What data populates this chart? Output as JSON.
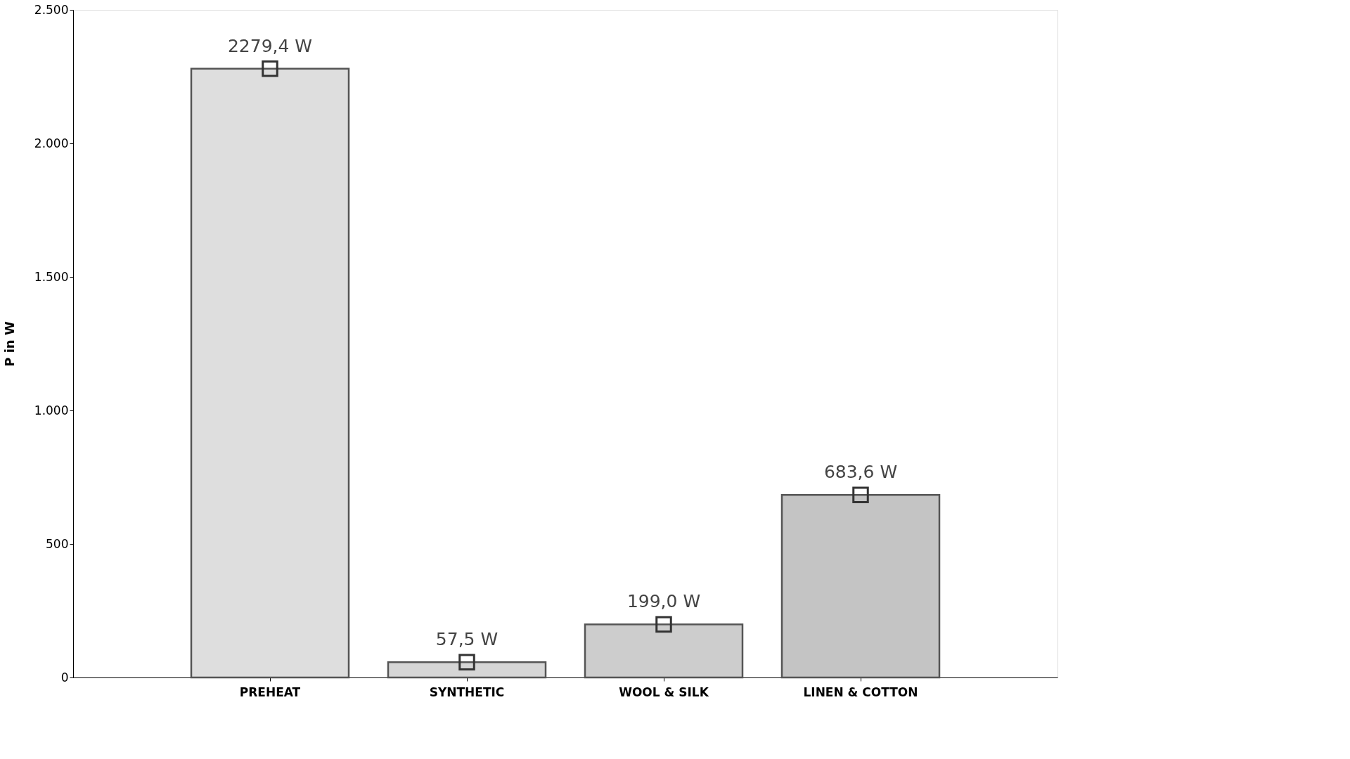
{
  "chart_data": {
    "type": "bar",
    "ylabel": "P in W",
    "categories": [
      "PREHEAT",
      "SYNTHETIC",
      "WOOL & SILK",
      "LINEN & COTTON"
    ],
    "series": [
      {
        "values": [
          2279.4,
          57.5,
          199.0,
          683.6
        ],
        "colors": [
          "#dedede",
          "#d6d6d6",
          "#cdcdcd",
          "#c4c4c4"
        ],
        "value_labels": [
          "2279,4 W",
          "57,5 W",
          "199,0 W",
          "683,6 W"
        ]
      },
      {
        "type": "scatter",
        "x": [
          "PREHEAT",
          "SYNTHETIC",
          "WOOL & SILK",
          "LINEN & COTTON"
        ],
        "values": [
          2279.4,
          57.5,
          199.0,
          683.6
        ],
        "color": "#333333",
        "marker": "square"
      }
    ],
    "ylim": [
      0,
      2500
    ],
    "yticks": [
      0,
      500,
      {
        "value": 1000,
        "label": "1.000"
      },
      {
        "value": 1500,
        "label": "1.500"
      },
      {
        "value": 2000,
        "label": "2.000"
      },
      {
        "value": 2500,
        "label": "2.500"
      }
    ],
    "grid": false
  }
}
